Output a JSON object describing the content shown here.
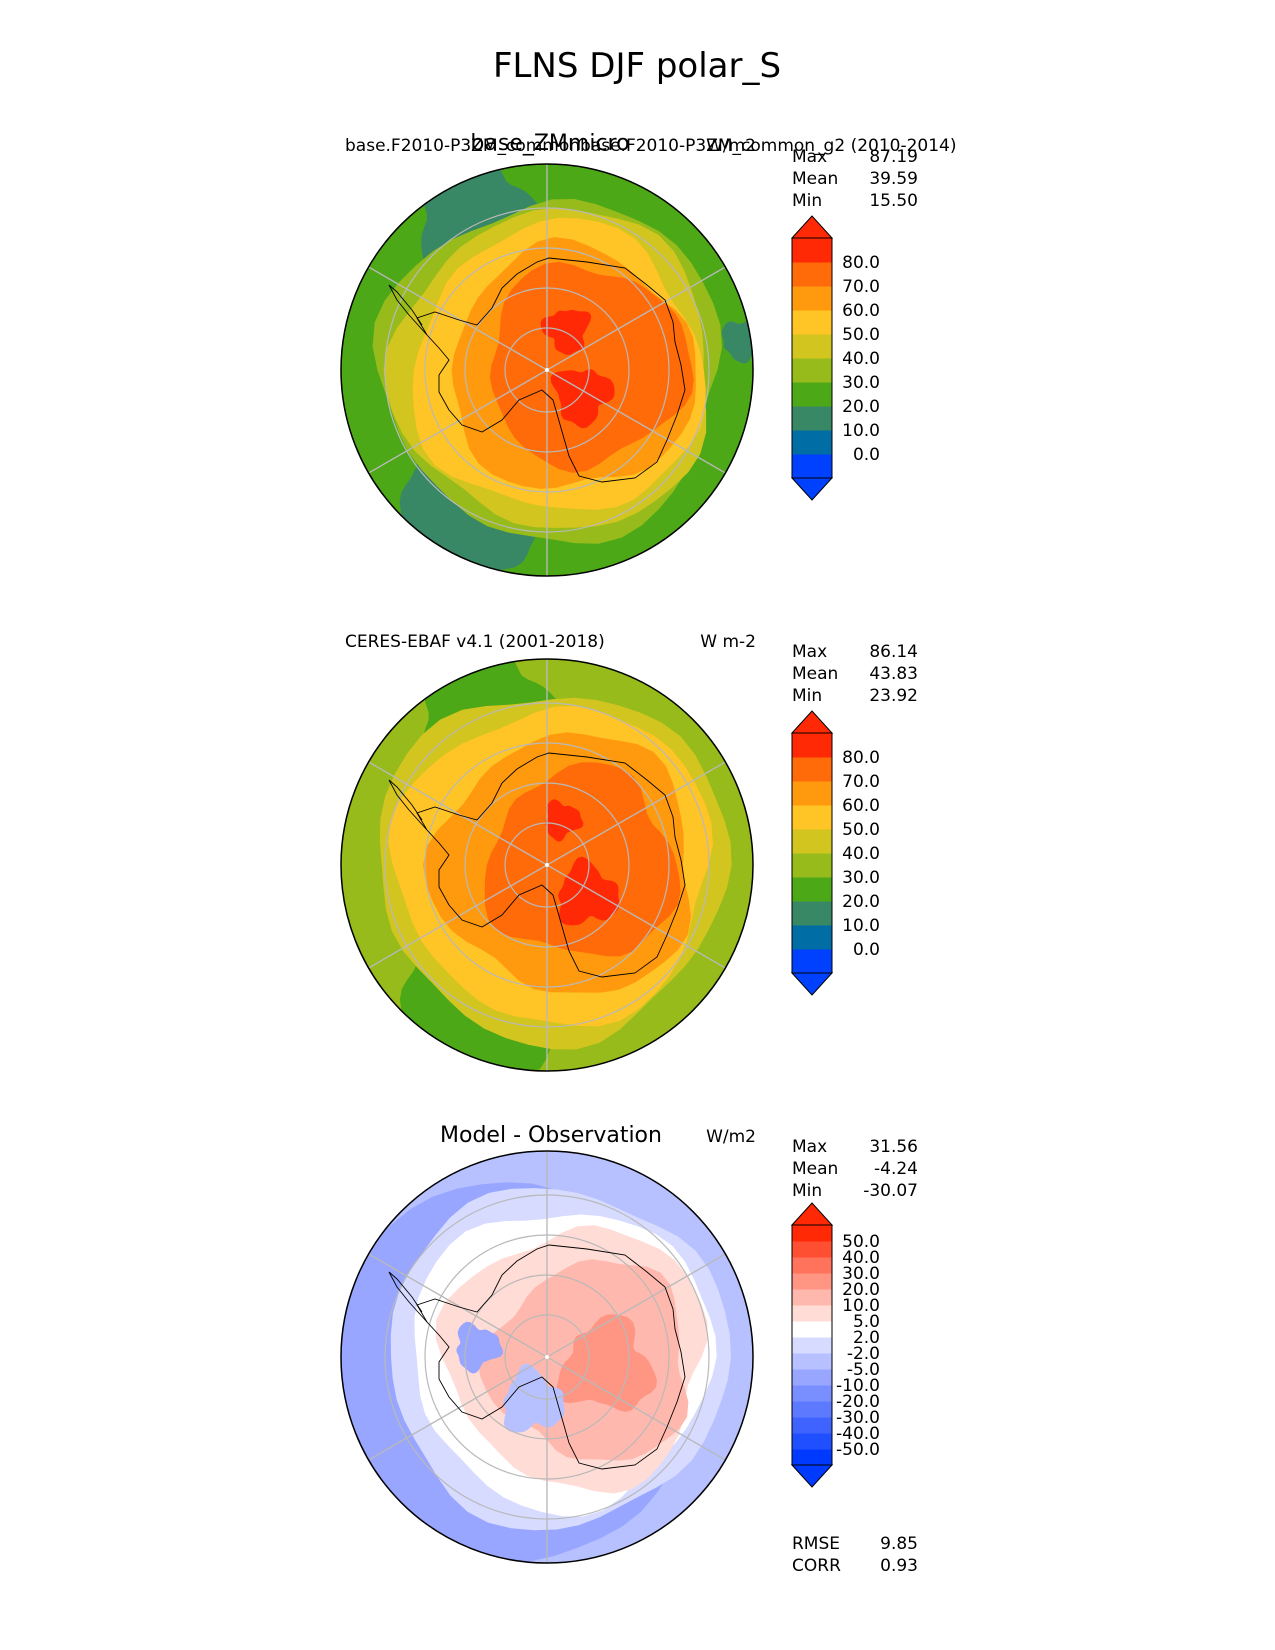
{
  "figure_title": "FLNS DJF polar_S",
  "colors": {
    "main_levels": [
      "#0040ff",
      "#006da4",
      "#398865",
      "#4da818",
      "#96bb1b",
      "#d2c51f",
      "#ffc425",
      "#ff9a0f",
      "#ff6b08",
      "#ff2a05"
    ],
    "diff_levels": [
      "#003aff",
      "#1f4fff",
      "#3e63ff",
      "#5d7aff",
      "#7a8fff",
      "#98a6ff",
      "#b7c1ff",
      "#d6dbff",
      "#ffffff",
      "#ffdcd6",
      "#ffb8ad",
      "#ff9583",
      "#ff725b",
      "#ff4f33",
      "#ff2a05"
    ],
    "grid": "#b9b9b9",
    "coast": "#000000"
  },
  "chart_data": [
    {
      "type": "heatmap",
      "projection": "south-polar-stereographic",
      "title": "base_ZMmicro",
      "left_label": "base.F2010-P3ZM_commonbase.F2010-P3ZM_common_g2 (2010-2014)",
      "right_label": "W/m2",
      "stats": {
        "max": "87.19",
        "mean": "39.59",
        "min": "15.50"
      },
      "colorbar": {
        "levels": [
          -10,
          0,
          10,
          20,
          30,
          40,
          50,
          60,
          70,
          80,
          90
        ],
        "tick_labels": [
          "80.0",
          "70.0",
          "60.0",
          "50.0",
          "40.0",
          "30.0",
          "20.0",
          "10.0",
          "0.0"
        ],
        "extend": "both"
      },
      "max_value": 87.19,
      "mean_value": 39.59,
      "min_value": 15.5
    },
    {
      "type": "heatmap",
      "projection": "south-polar-stereographic",
      "title": "",
      "left_label": "CERES-EBAF v4.1 (2001-2018)",
      "right_label": "W m-2",
      "stats": {
        "max": "86.14",
        "mean": "43.83",
        "min": "23.92"
      },
      "colorbar": {
        "levels": [
          -10,
          0,
          10,
          20,
          30,
          40,
          50,
          60,
          70,
          80,
          90
        ],
        "tick_labels": [
          "80.0",
          "70.0",
          "60.0",
          "50.0",
          "40.0",
          "30.0",
          "20.0",
          "10.0",
          "0.0"
        ],
        "extend": "both"
      },
      "max_value": 86.14,
      "mean_value": 43.83,
      "min_value": 23.92
    },
    {
      "type": "heatmap",
      "projection": "south-polar-stereographic",
      "title": "Model - Observation",
      "left_label": "",
      "right_label": "W/m2",
      "stats": {
        "max": "31.56",
        "mean": "-4.24",
        "min": "-30.07"
      },
      "colorbar": {
        "levels": [
          -50,
          -40,
          -30,
          -20,
          -10,
          -5,
          -2,
          2,
          5,
          10,
          20,
          30,
          40,
          50
        ],
        "tick_labels": [
          "50.0",
          "40.0",
          "30.0",
          "20.0",
          "10.0",
          "5.0",
          "2.0",
          "-2.0",
          "-5.0",
          "-10.0",
          "-20.0",
          "-30.0",
          "-40.0",
          "-50.0"
        ],
        "extend": "both"
      },
      "metrics": {
        "rmse_label": "RMSE",
        "rmse": "9.85",
        "corr_label": "CORR",
        "corr": "0.93"
      },
      "max_value": 31.56,
      "mean_value": -4.24,
      "min_value": -30.07
    }
  ],
  "stat_labels": {
    "max": "Max",
    "mean": "Mean",
    "min": "Min"
  }
}
